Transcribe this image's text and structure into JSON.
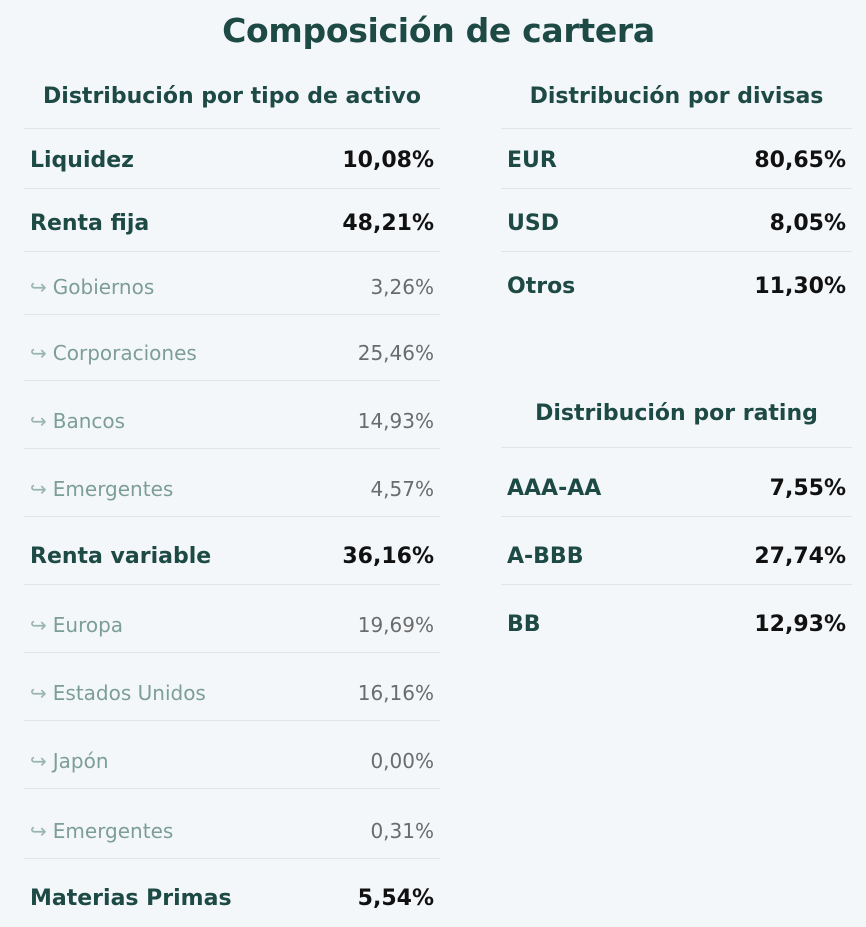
{
  "title": "Composición de cartera",
  "asset_type": {
    "heading": "Distribución por tipo de activo",
    "rows": [
      {
        "label": "Liquidez",
        "value": "10,08%"
      },
      {
        "label": "Renta fija",
        "value": "48,21%"
      },
      {
        "label": "Gobiernos",
        "value": "3,26%"
      },
      {
        "label": "Corporaciones",
        "value": "25,46%"
      },
      {
        "label": "Bancos",
        "value": "14,93%"
      },
      {
        "label": "Emergentes",
        "value": "4,57%"
      },
      {
        "label": "Renta variable",
        "value": "36,16%"
      },
      {
        "label": "Europa",
        "value": "19,69%"
      },
      {
        "label": "Estados Unidos",
        "value": "16,16%"
      },
      {
        "label": "Japón",
        "value": "0,00%"
      },
      {
        "label": "Emergentes",
        "value": "0,31%"
      },
      {
        "label": "Materias Primas",
        "value": "5,54%"
      }
    ]
  },
  "currency": {
    "heading": "Distribución por divisas",
    "rows": [
      {
        "label": "EUR",
        "value": "80,65%"
      },
      {
        "label": "USD",
        "value": "8,05%"
      },
      {
        "label": "Otros",
        "value": "11,30%"
      }
    ]
  },
  "rating": {
    "heading": "Distribución por rating",
    "rows": [
      {
        "label": "AAA-AA",
        "value": "7,55%"
      },
      {
        "label": "A-BBB",
        "value": "27,74%"
      },
      {
        "label": "BB",
        "value": "12,93%"
      }
    ]
  },
  "sub_arrow": "↪",
  "colors": {
    "heading": "#1e4a45",
    "sub_label": "#7c9e96",
    "value_main": "#111111",
    "value_sub": "#6b6b6b",
    "background": "#f4f7fa"
  }
}
